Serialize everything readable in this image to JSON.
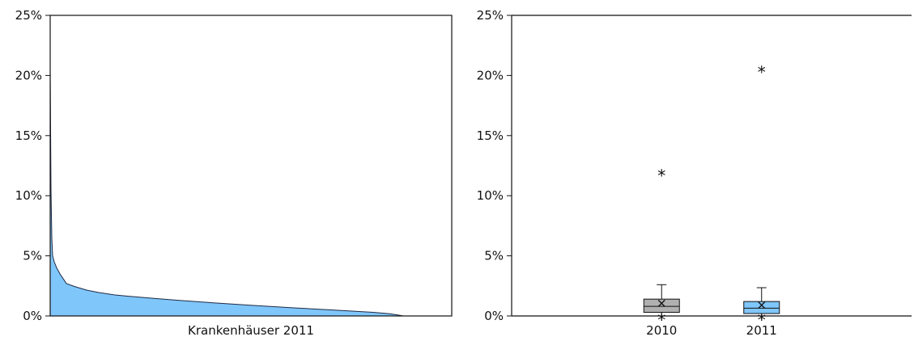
{
  "chart_data": [
    {
      "type": "area",
      "xlabel": "Krankenhäuser 2011",
      "ylim": [
        0,
        25
      ],
      "y_ticks": [
        "0%",
        "5%",
        "10%",
        "15%",
        "20%",
        "25%"
      ],
      "grid": false,
      "fill_color": "#7fc6fb",
      "line_color": "#1f2a44",
      "series": [
        {
          "x": [
            0,
            1,
            2,
            3,
            5,
            8,
            12,
            20,
            30,
            45,
            60,
            80,
            100,
            130,
            160,
            200,
            250,
            300,
            350,
            400,
            420,
            430,
            436,
            437
          ],
          "values": [
            20.6,
            10.5,
            6.5,
            5.0,
            4.5,
            4.0,
            3.5,
            2.7,
            2.45,
            2.15,
            1.95,
            1.75,
            1.62,
            1.45,
            1.3,
            1.1,
            0.88,
            0.68,
            0.5,
            0.3,
            0.18,
            0.08,
            0.02,
            0.0
          ]
        }
      ]
    },
    {
      "type": "box",
      "categories": [
        "2010",
        "2011"
      ],
      "ylim": [
        0,
        25
      ],
      "y_ticks": [
        "0%",
        "5%",
        "10%",
        "15%",
        "20%",
        "25%"
      ],
      "grid": false,
      "boxes": [
        {
          "category": "2010",
          "color": "#b0b0b0",
          "min": 0.0,
          "q1": 0.3,
          "median": 0.8,
          "q3": 1.4,
          "max": 2.6,
          "mean": 1.05,
          "outliers": [
            12.0,
            0.0
          ]
        },
        {
          "category": "2011",
          "color": "#7fc6fb",
          "min": 0.0,
          "q1": 0.2,
          "median": 0.65,
          "q3": 1.2,
          "max": 2.35,
          "mean": 0.9,
          "outliers": [
            20.6,
            0.0
          ]
        }
      ]
    }
  ]
}
